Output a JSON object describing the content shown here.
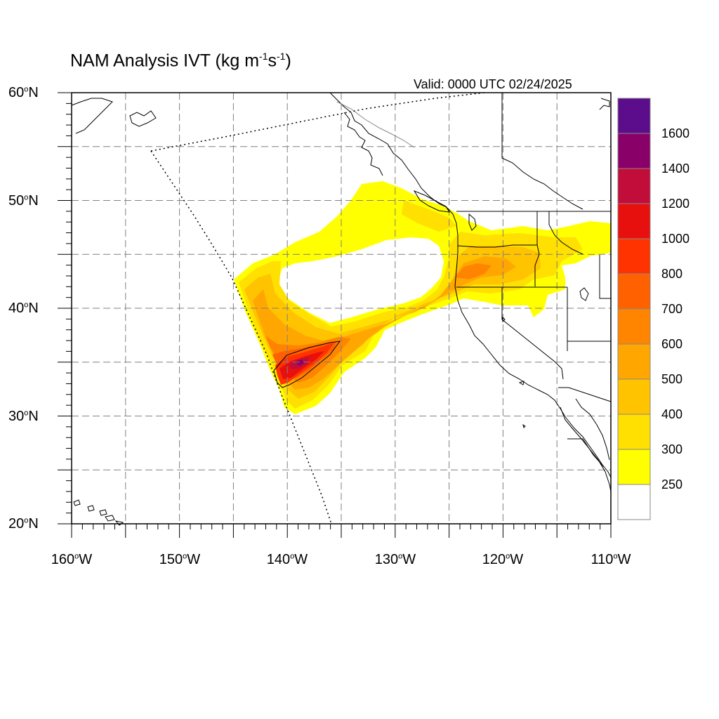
{
  "title": {
    "main": "NAM Analysis IVT (kg m",
    "exp1": "-1",
    "mid": "s",
    "exp2": "-1",
    "end": ")"
  },
  "valid_time": "Valid: 0000 UTC 02/24/2025",
  "map": {
    "projection": "cylindrical equidistant",
    "lon_range": [
      -160,
      -110
    ],
    "lat_range": [
      20,
      60
    ],
    "gridlines": {
      "lon": [
        -155,
        -150,
        -145,
        -140,
        -135,
        -130,
        -125,
        -120,
        -115
      ],
      "lat": [
        25,
        30,
        35,
        40,
        45,
        50,
        55
      ]
    },
    "lat_labels": [
      {
        "deg": "60",
        "hemi": "N"
      },
      {
        "deg": "50",
        "hemi": "N"
      },
      {
        "deg": "40",
        "hemi": "N"
      },
      {
        "deg": "30",
        "hemi": "N"
      },
      {
        "deg": "20",
        "hemi": "N"
      }
    ],
    "lon_labels": [
      {
        "deg": "160",
        "hemi": "W"
      },
      {
        "deg": "150",
        "hemi": "W"
      },
      {
        "deg": "140",
        "hemi": "W"
      },
      {
        "deg": "130",
        "hemi": "W"
      },
      {
        "deg": "120",
        "hemi": "W"
      },
      {
        "deg": "110",
        "hemi": "W"
      }
    ]
  },
  "colorbar": {
    "labels": [
      "1600",
      "1400",
      "1200",
      "1000",
      "800",
      "700",
      "600",
      "500",
      "400",
      "300",
      "250"
    ],
    "colors": [
      "#5b0d8c",
      "#8a0069",
      "#c20d3b",
      "#e8100f",
      "#ff3300",
      "#ff6000",
      "#ff8400",
      "#ffa700",
      "#ffc300",
      "#ffe000",
      "#ffff00",
      "#ffffff"
    ]
  },
  "fill_colors": {
    "c250": "#ffff00",
    "c300": "#ffe000",
    "c400": "#ffc300",
    "c500": "#ffa700",
    "c600": "#ff8400",
    "c700": "#ff6000",
    "c800": "#ff3300",
    "c1000": "#e8100f",
    "c1200": "#c20d3b",
    "c1400": "#8a0069"
  }
}
